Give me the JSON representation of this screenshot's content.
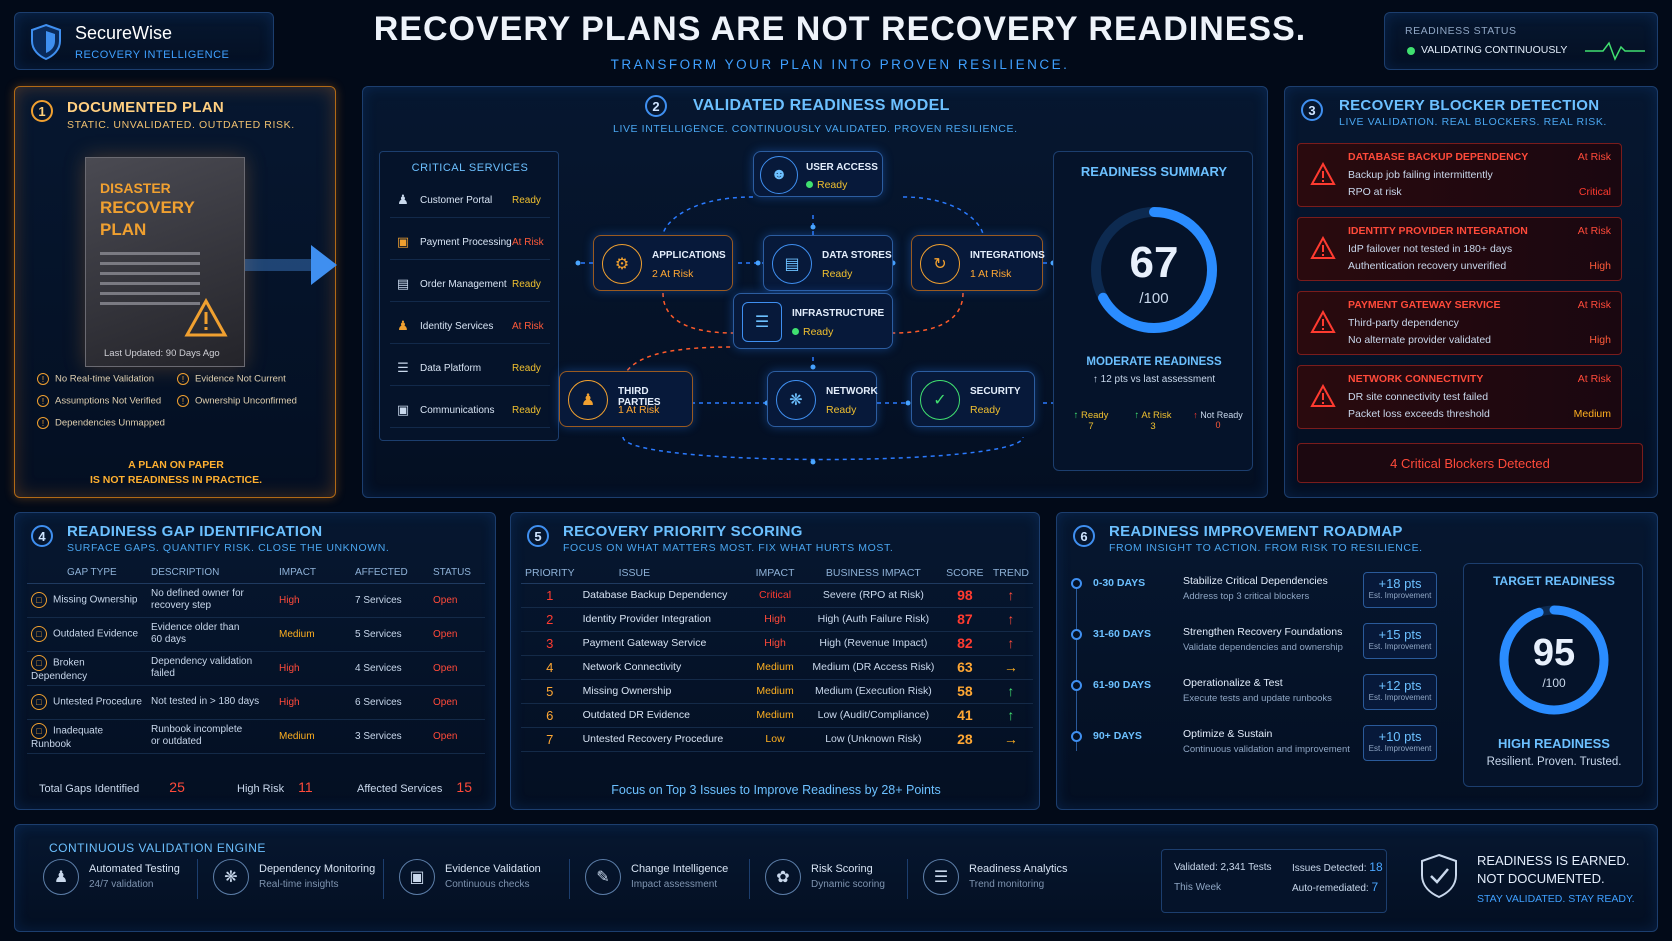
{
  "brand": {
    "name": "SecureWise",
    "tagline": "RECOVERY INTELLIGENCE"
  },
  "header": {
    "title": "RECOVERY PLANS ARE NOT RECOVERY READINESS.",
    "subtitle": "TRANSFORM YOUR PLAN INTO PROVEN RESILIENCE."
  },
  "status": {
    "label": "READINESS STATUS",
    "value": "VALIDATING CONTINUOUSLY"
  },
  "documented_plan": {
    "number": "1",
    "title": "DOCUMENTED PLAN",
    "subtitle": "STATIC. UNVALIDATED. OUTDATED RISK.",
    "doc_title_1": "DISASTER",
    "doc_title_2": "RECOVERY",
    "doc_title_3": "PLAN",
    "last_updated": "Last Updated: 90 Days Ago",
    "issues": [
      "No Real-time Validation",
      "Evidence Not Current",
      "Assumptions Not Verified",
      "Ownership Unconfirmed",
      "Dependencies Unmapped"
    ],
    "footer_1": "A PLAN ON PAPER",
    "footer_2": "IS NOT READINESS IN PRACTICE."
  },
  "model": {
    "number": "2",
    "title": "VALIDATED READINESS MODEL",
    "subtitle": "LIVE INTELLIGENCE. CONTINUOUSLY VALIDATED. PROVEN RESILIENCE.",
    "services_title": "CRITICAL SERVICES",
    "services": [
      {
        "name": "Customer Portal",
        "status": "Ready"
      },
      {
        "name": "Payment Processing",
        "status": "At Risk"
      },
      {
        "name": "Order Management",
        "status": "Ready"
      },
      {
        "name": "Identity Services",
        "status": "At Risk"
      },
      {
        "name": "Data Platform",
        "status": "Ready"
      },
      {
        "name": "Communications",
        "status": "Ready"
      }
    ],
    "nodes": {
      "user_access": {
        "label": "USER ACCESS",
        "status": "Ready"
      },
      "applications": {
        "label": "APPLICATIONS",
        "status": "2 At Risk"
      },
      "data_stores": {
        "label": "DATA STORES",
        "status": "Ready"
      },
      "integrations": {
        "label": "INTEGRATIONS",
        "status": "1 At Risk"
      },
      "infrastructure": {
        "label": "INFRASTRUCTURE",
        "status": "Ready"
      },
      "third_parties": {
        "label": "THIRD PARTIES",
        "status": "1 At Risk"
      },
      "network": {
        "label": "NETWORK",
        "status": "Ready"
      },
      "security": {
        "label": "SECURITY",
        "status": "Ready"
      }
    },
    "summary": {
      "title": "READINESS SUMMARY",
      "score": "67",
      "score_max": "/100",
      "score_fraction": 0.67,
      "level": "MODERATE READINESS",
      "delta": "↑ 12 pts vs last assessment",
      "ready_label": "Ready",
      "ready_count": "7",
      "risk_label": "At Risk",
      "risk_count": "3",
      "notready_label": "Not Ready",
      "notready_count": "0"
    }
  },
  "blockers": {
    "number": "3",
    "title": "RECOVERY BLOCKER DETECTION",
    "subtitle": "LIVE VALIDATION. REAL BLOCKERS. REAL RISK.",
    "items": [
      {
        "title": "DATABASE BACKUP DEPENDENCY",
        "line1": "Backup job failing intermittently",
        "line2": "RPO at risk",
        "status": "At Risk",
        "severity": "Critical"
      },
      {
        "title": "IDENTITY PROVIDER INTEGRATION",
        "line1": "IdP failover not tested in 180+ days",
        "line2": "Authentication recovery unverified",
        "status": "At Risk",
        "severity": "High"
      },
      {
        "title": "PAYMENT GATEWAY SERVICE",
        "line1": "Third-party dependency",
        "line2": "No alternate provider validated",
        "status": "At Risk",
        "severity": "High"
      },
      {
        "title": "NETWORK CONNECTIVITY",
        "line1": "DR site connectivity test failed",
        "line2": "Packet loss exceeds threshold",
        "status": "At Risk",
        "severity": "Medium"
      }
    ],
    "footer": "4 Critical Blockers Detected"
  },
  "gaps": {
    "number": "4",
    "title": "READINESS GAP IDENTIFICATION",
    "subtitle": "SURFACE GAPS. QUANTIFY RISK. CLOSE THE UNKNOWN.",
    "headers": [
      "GAP TYPE",
      "DESCRIPTION",
      "IMPACT",
      "AFFECTED",
      "STATUS"
    ],
    "rows": [
      {
        "type": "Missing Ownership",
        "d1": "No defined owner for",
        "d2": "recovery step",
        "impact": "High",
        "affected": "7 Services",
        "status": "Open"
      },
      {
        "type": "Outdated Evidence",
        "d1": "Evidence older than",
        "d2": "60 days",
        "impact": "Medium",
        "affected": "5 Services",
        "status": "Open"
      },
      {
        "type": "Broken Dependency",
        "d1": "Dependency validation",
        "d2": "failed",
        "impact": "High",
        "affected": "4 Services",
        "status": "Open"
      },
      {
        "type": "Untested Procedure",
        "d1": "Not tested in > 180 days",
        "d2": "",
        "impact": "High",
        "affected": "6 Services",
        "status": "Open"
      },
      {
        "type": "Inadequate Runbook",
        "d1": "Runbook incomplete",
        "d2": "or outdated",
        "impact": "Medium",
        "affected": "3 Services",
        "status": "Open"
      }
    ],
    "total_label": "Total Gaps Identified",
    "total": "25",
    "high_label": "High Risk",
    "high": "11",
    "affected_label": "Affected Services",
    "affected": "15"
  },
  "priority": {
    "number": "5",
    "title": "RECOVERY PRIORITY SCORING",
    "subtitle": "FOCUS ON WHAT MATTERS MOST. FIX WHAT HURTS MOST.",
    "headers": [
      "PRIORITY",
      "ISSUE",
      "IMPACT",
      "BUSINESS IMPACT",
      "SCORE",
      "TREND"
    ],
    "rows": [
      {
        "p": "1",
        "issue": "Database Backup Dependency",
        "impact": "Critical",
        "biz": "Severe (RPO at Risk)",
        "score": "98",
        "trend": "↑"
      },
      {
        "p": "2",
        "issue": "Identity Provider Integration",
        "impact": "High",
        "biz": "High (Auth Failure Risk)",
        "score": "87",
        "trend": "↑"
      },
      {
        "p": "3",
        "issue": "Payment Gateway Service",
        "impact": "High",
        "biz": "High (Revenue Impact)",
        "score": "82",
        "trend": "↑"
      },
      {
        "p": "4",
        "issue": "Network Connectivity",
        "impact": "Medium",
        "biz": "Medium (DR Access Risk)",
        "score": "63",
        "trend": "→"
      },
      {
        "p": "5",
        "issue": "Missing Ownership",
        "impact": "Medium",
        "biz": "Medium (Execution Risk)",
        "score": "58",
        "trend": "↑"
      },
      {
        "p": "6",
        "issue": "Outdated DR Evidence",
        "impact": "Medium",
        "biz": "Low (Audit/Compliance)",
        "score": "41",
        "trend": "↑"
      },
      {
        "p": "7",
        "issue": "Untested Recovery Procedure",
        "impact": "Low",
        "biz": "Low (Unknown Risk)",
        "score": "28",
        "trend": "→"
      }
    ],
    "footer": "Focus on Top 3 Issues to Improve Readiness by 28+ Points"
  },
  "roadmap": {
    "number": "6",
    "title": "READINESS IMPROVEMENT ROADMAP",
    "subtitle": "FROM INSIGHT TO ACTION. FROM RISK TO RESILIENCE.",
    "phases": [
      {
        "period": "0-30 DAYS",
        "title": "Stabilize Critical Dependencies",
        "desc": "Address top 3 critical blockers",
        "pts": "+18 pts",
        "pts_label": "Est. Improvement"
      },
      {
        "period": "31-60 DAYS",
        "title": "Strengthen Recovery Foundations",
        "desc": "Validate dependencies and ownership",
        "pts": "+15 pts",
        "pts_label": "Est. Improvement"
      },
      {
        "period": "61-90 DAYS",
        "title": "Operationalize & Test",
        "desc": "Execute tests and update runbooks",
        "pts": "+12 pts",
        "pts_label": "Est. Improvement"
      },
      {
        "period": "90+ DAYS",
        "title": "Optimize & Sustain",
        "desc": "Continuous validation and improvement",
        "pts": "+10 pts",
        "pts_label": "Est. Improvement"
      }
    ],
    "target_title": "TARGET READINESS",
    "target_score": "95",
    "target_max": "/100",
    "target_fraction": 0.95,
    "target_level": "HIGH READINESS",
    "target_tag": "Resilient. Proven. Trusted."
  },
  "engine": {
    "title": "CONTINUOUS VALIDATION ENGINE",
    "items": [
      {
        "title": "Automated Testing",
        "sub": "24/7 validation",
        "icon": "user-check-icon"
      },
      {
        "title": "Dependency Monitoring",
        "sub": "Real-time insights",
        "icon": "network-icon"
      },
      {
        "title": "Evidence Validation",
        "sub": "Continuous checks",
        "icon": "document-check-icon"
      },
      {
        "title": "Change Intelligence",
        "sub": "Impact assessment",
        "icon": "edit-icon"
      },
      {
        "title": "Risk Scoring",
        "sub": "Dynamic scoring",
        "icon": "bug-icon"
      },
      {
        "title": "Readiness Analytics",
        "sub": "Trend monitoring",
        "icon": "stack-icon"
      }
    ],
    "validated_label": "Validated: 2,341 Tests",
    "week_label": "This Week",
    "issues_label": "Issues Detected:",
    "issues_value": "18",
    "auto_label": "Auto-remediated:",
    "auto_value": "7",
    "tag_1": "READINESS IS EARNED.",
    "tag_2": "NOT DOCUMENTED.",
    "tag_3": "STAY VALIDATED. STAY READY."
  }
}
